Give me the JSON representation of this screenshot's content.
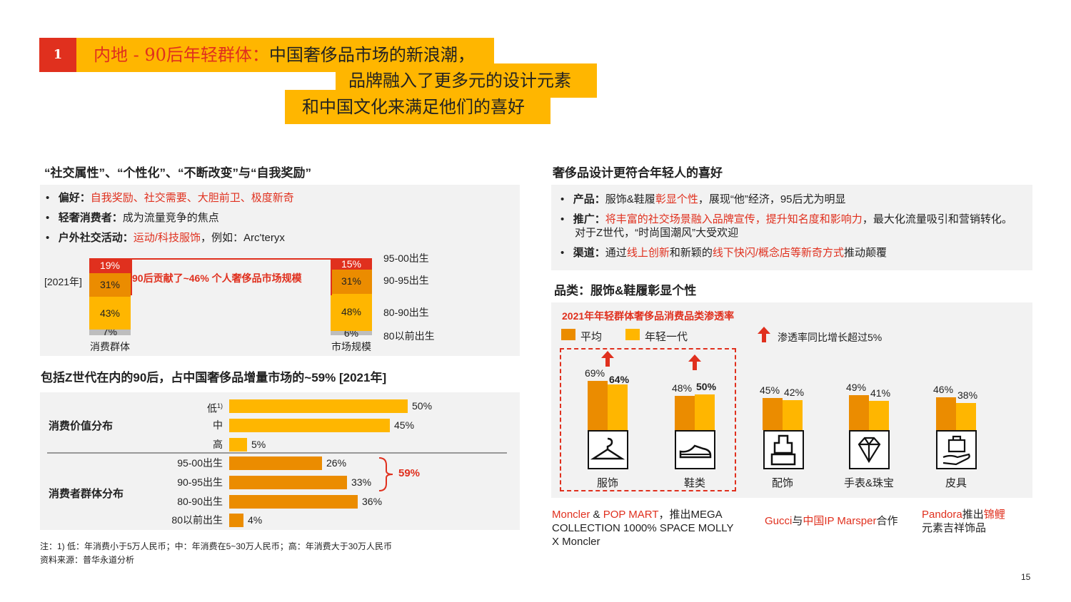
{
  "header": {
    "number": "1",
    "line1_prefix": "内地 - 90后年轻群体：",
    "line1_main": "中国奢侈品市场的新浪潮，",
    "line2": "品牌融入了更多元的设计元素",
    "line3": "和中国文化来满足他们的喜好"
  },
  "left_top": {
    "title": "“社交属性”、“个性化”、“不断改变”与“自我奖励”",
    "bullets": [
      {
        "label": "偏好：",
        "text": "",
        "highlight": "自我奖励、社交需要、大胆前卫、极度新奇"
      },
      {
        "label": "轻奢消费者：",
        "text": "成为流量竞争的焦点",
        "highlight": ""
      },
      {
        "label": "户外社交活动：",
        "text": "，例如：Arc'teryx",
        "highlight": "运动/科技服饰"
      }
    ],
    "bullet_glyph": "•",
    "year_label": "[2021年]",
    "callout": "90后贡献了~46% 个人奢侈品市场规模"
  },
  "left_mid": {
    "title": "包括Z世代在内的90后，占中国奢侈品增量市场的~59% [2021年]",
    "group1": "消费价值分布",
    "group2": "消费者群体分布",
    "sum_label": "59%"
  },
  "footnote": "注：1) 低：年消费小于5万人民币；中：年消费在5~30万人民币；高：年消费大于30万人民币",
  "source": "资料来源：普华永道分析",
  "right_top": {
    "title": "奢侈品设计更符合年轻人的喜好",
    "bullets": [
      {
        "label": "产品：",
        "text_a": "服饰&鞋履",
        "hl": "彰显个性",
        "text_b": "，展现“他”经济，95后尤为明显"
      },
      {
        "label": "推广：",
        "hl": "将丰富的社交场景融入品牌宣传，提升知名度和影响力",
        "text_b": "，最大化流量吸引和营销转化。",
        "line2": "对于Z世代，“时尚国潮风”大受欢迎"
      },
      {
        "label": "渠道：",
        "text_a": "通过",
        "hl": "线上创新",
        "text_b": "和新颖的",
        "hl2": "线下快闪/概念店等新奇方式",
        "text_c": "推动颠覆"
      }
    ]
  },
  "right_mid": {
    "title": "品类：服饰&鞋履彰显个性",
    "chart_title": "2021年年轻群体奢侈品消费品类渗透率",
    "legend_avg": "平均",
    "legend_young": "年轻一代",
    "legend_arrow": "渗透率同比增长超过5%"
  },
  "captions": {
    "c1_a": "Moncler",
    "c1_b": " & ",
    "c1_c": "POP MART",
    "c1_d": "，推出MEGA",
    "c1_e": "COLLECTION 1000% SPACE MOLLY",
    "c1_f": "X Moncler",
    "c2_a": "Gucci",
    "c2_b": "与",
    "c2_c": "中国IP Marsper",
    "c2_d": "合作",
    "c3_a": "Pandora",
    "c3_b": "推出",
    "c3_c": "锦鲤",
    "c3_d": "元素吉祥饰品"
  },
  "page_number": "15",
  "colors": {
    "yellow": "#FFB600",
    "orange": "#EB8C00",
    "red": "#E0301E",
    "grey": "#BDBDBD",
    "panel": "#F2F2F2"
  },
  "chart_data": [
    {
      "type": "bar",
      "stacked": true,
      "title": "",
      "categories": [
        "消费群体",
        "市场规模"
      ],
      "series": [
        {
          "name": "95-00出生",
          "values": [
            19,
            15
          ],
          "color": "#E0301E"
        },
        {
          "name": "90-95出生",
          "values": [
            31,
            31
          ],
          "color": "#EB8C00"
        },
        {
          "name": "80-90出生",
          "values": [
            43,
            48
          ],
          "color": "#FFB600"
        },
        {
          "name": "80以前出生",
          "values": [
            7,
            6
          ],
          "color": "#BDBDBD"
        }
      ],
      "unit": "%"
    },
    {
      "type": "bar",
      "orientation": "horizontal",
      "title": "",
      "groups": [
        {
          "name": "消费价值分布",
          "categories": [
            "低",
            "中",
            "高"
          ],
          "footnote_marks": [
            "1)",
            "",
            ""
          ],
          "values": [
            50,
            45,
            5
          ],
          "color": "#FFB600"
        },
        {
          "name": "消费者群体分布",
          "categories": [
            "95-00出生",
            "90-95出生",
            "80-90出生",
            "80以前出生"
          ],
          "values": [
            26,
            33,
            36,
            4
          ],
          "color": "#EB8C00"
        }
      ],
      "unit": "%",
      "xlim": [
        0,
        60
      ]
    },
    {
      "type": "bar",
      "title": "2021年年轻群体奢侈品消费品类渗透率",
      "categories": [
        "服饰",
        "鞋类",
        "配饰",
        "手表&珠宝",
        "皮具"
      ],
      "series": [
        {
          "name": "平均",
          "values": [
            69,
            48,
            45,
            49,
            46
          ],
          "color": "#EB8C00"
        },
        {
          "name": "年轻一代",
          "values": [
            64,
            50,
            42,
            41,
            38
          ],
          "color": "#FFB600"
        }
      ],
      "growth_over_5pct": [
        true,
        true,
        false,
        false,
        false
      ],
      "unit": "%",
      "ylim": [
        0,
        100
      ]
    }
  ]
}
